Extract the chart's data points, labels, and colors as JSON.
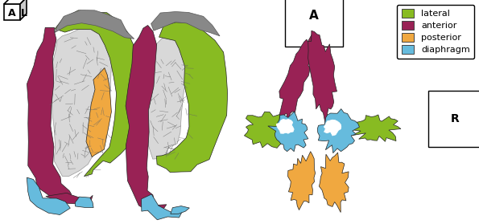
{
  "background_color": "#ffffff",
  "colors": {
    "lateral": "#88bb22",
    "anterior": "#992255",
    "posterior": "#f0a840",
    "diaphragm": "#66bbdd",
    "gray_apex": "#888888",
    "white_mesh": "#d8d8d8",
    "mesh_line": "#777777"
  },
  "legend_labels": [
    "lateral",
    "anterior",
    "posterior",
    "diaphragm"
  ],
  "legend_colors": [
    "#88bb22",
    "#992255",
    "#f0a840",
    "#66bbdd"
  ]
}
